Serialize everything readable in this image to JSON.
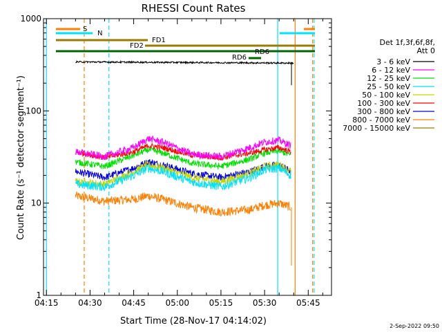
{
  "colors": {
    "frame": "#000000",
    "cyan": "#00e0ff",
    "orange": "#ff7f00",
    "olive": "#9b7a00",
    "dkgreen": "#006400"
  },
  "chart_data": {
    "type": "line",
    "title": "RHESSI Count Rates",
    "xlabel": "Start Time (28-Nov-17 04:14:02)",
    "ylabel": "Count Rate (s⁻¹ detector segment⁻¹)",
    "y_scale": "log",
    "xlim": [
      "04:14",
      "05:53"
    ],
    "ylim": [
      1,
      1000
    ],
    "x_ticks": [
      "04:15",
      "04:30",
      "04:45",
      "05:00",
      "05:15",
      "05:30",
      "05:45"
    ],
    "y_ticks": [
      "1",
      "10",
      "100",
      "1000"
    ],
    "legend_header": [
      "Det 1f,3f,6f,8f,",
      "Att 0"
    ],
    "legend_position": "right",
    "series": [
      {
        "name": "3 - 6 keV",
        "color": "#000000",
        "x": [
          "04:25",
          "05:40"
        ],
        "y": [
          340,
          330
        ]
      },
      {
        "name": "6 - 12 keV",
        "color": "#ff00ff",
        "x": [
          "04:25",
          "04:35",
          "04:45",
          "04:50",
          "04:55",
          "05:05",
          "05:15",
          "05:25",
          "05:30",
          "05:35",
          "05:39"
        ],
        "y": [
          36,
          32,
          40,
          50,
          46,
          34,
          32,
          40,
          46,
          48,
          42
        ]
      },
      {
        "name": "12 - 25 keV",
        "color": "#00e000",
        "x": [
          "04:25",
          "04:35",
          "04:45",
          "04:50",
          "04:55",
          "05:05",
          "05:15",
          "05:25",
          "05:30",
          "05:35",
          "05:39"
        ],
        "y": [
          28,
          25,
          33,
          38,
          35,
          27,
          25,
          30,
          35,
          37,
          33
        ]
      },
      {
        "name": "25 - 50 keV",
        "color": "#00e0ff",
        "x": [
          "04:25",
          "04:35",
          "04:45",
          "04:50",
          "04:55",
          "05:05",
          "05:15",
          "05:25",
          "05:30",
          "05:35",
          "05:39"
        ],
        "y": [
          16,
          15,
          20,
          24,
          22,
          17,
          15,
          19,
          23,
          24,
          20
        ]
      },
      {
        "name": "50 - 100 keV",
        "color": "#c8d400",
        "x": [
          "04:25",
          "04:35",
          "04:45",
          "04:50",
          "04:55",
          "05:05",
          "05:15",
          "05:25",
          "05:30",
          "05:35",
          "05:39"
        ],
        "y": [
          17,
          16,
          22,
          26,
          24,
          19,
          17,
          21,
          25,
          26,
          22
        ]
      },
      {
        "name": "100 - 300 keV",
        "color": "#ff0000",
        "x": [
          "04:25",
          "04:35",
          "04:45",
          "04:50",
          "04:55",
          "05:05",
          "05:15",
          "05:25",
          "05:30",
          "05:35",
          "05:39"
        ],
        "y": [
          36,
          31,
          36,
          42,
          40,
          33,
          31,
          35,
          38,
          40,
          36
        ]
      },
      {
        "name": "300 - 800 keV",
        "color": "#0000dd",
        "x": [
          "04:25",
          "04:35",
          "04:45",
          "04:50",
          "04:55",
          "05:05",
          "05:15",
          "05:25",
          "05:30",
          "05:35",
          "05:39"
        ],
        "y": [
          22,
          19,
          24,
          28,
          26,
          21,
          19,
          22,
          25,
          26,
          22
        ]
      },
      {
        "name": "800 - 7000 keV",
        "color": "#ff7f00",
        "x": [
          "04:25",
          "04:35",
          "04:45",
          "04:50",
          "04:55",
          "05:05",
          "05:15",
          "05:25",
          "05:30",
          "05:35",
          "05:39"
        ],
        "y": [
          12,
          10.5,
          11,
          12,
          11,
          9,
          8,
          8.5,
          9.5,
          10,
          9
        ]
      },
      {
        "name": "7000 - 15000 keV",
        "color": "#9b7a00",
        "x": [],
        "y": []
      }
    ],
    "annotations": [
      {
        "label": "S",
        "color": "#ff7f00"
      },
      {
        "label": "N",
        "color": "#00e0ff"
      },
      {
        "label": "FD1",
        "color": "#9b7a00"
      },
      {
        "label": "FD2",
        "color": "#9b7a00"
      },
      {
        "label": "RD6",
        "color": "#006400"
      },
      {
        "label": "RD6",
        "color": "#006400"
      }
    ],
    "timestamp": "2-Sep-2022 09:50"
  }
}
